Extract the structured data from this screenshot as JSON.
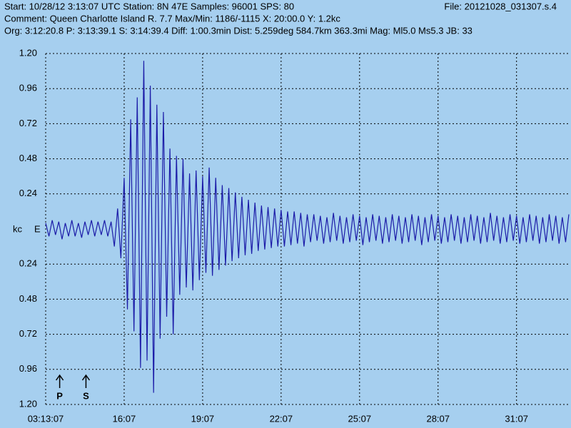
{
  "chart_data": {
    "type": "line",
    "file": "File: 20121028_031307.s.4",
    "info_lines": [
      "Start: 10/28/12  3:13:07 UTC Station:  8N 47E Samples: 96001  SPS: 80",
      "Comment: Queen Charlotte Island R. 7.7  Max/Min: 1186/-1115 X: 20:00.0 Y: 1.2kc",
      "Org: 3:12:20.8 P: 3:13:39.1 S: 3:14:39.4 Diff: 1:00.3min Dist: 5.259deg 584.7km 363.3mi  Mag: Ml5.0 Ms5.3 JB: 33"
    ],
    "y_unit": "kc",
    "channel": "E",
    "color": "#1c1ca8",
    "grid": true,
    "xlim": [
      0,
      20
    ],
    "ylim": [
      -1.2,
      1.2
    ],
    "xticks": [
      {
        "value": 0,
        "label": "03:13:07"
      },
      {
        "value": 3,
        "label": "16:07"
      },
      {
        "value": 6,
        "label": "19:07"
      },
      {
        "value": 9,
        "label": "22:07"
      },
      {
        "value": 12,
        "label": "25:07"
      },
      {
        "value": 15,
        "label": "28:07"
      },
      {
        "value": 18,
        "label": "31:07"
      }
    ],
    "yticks": [
      {
        "value": 1.2,
        "label": "1.20"
      },
      0.96,
      0.72,
      0.48,
      0.24,
      {
        "value": -0.24,
        "label": "0.24"
      },
      {
        "value": -0.48,
        "label": "0.48"
      },
      {
        "value": -0.72,
        "label": "0.72"
      },
      {
        "value": -0.96,
        "label": "0.96"
      },
      {
        "value": -1.2,
        "label": "1.20"
      }
    ],
    "markers": [
      {
        "label": "P",
        "x": 0.535
      },
      {
        "label": "S",
        "x": 1.54
      }
    ],
    "x": [
      0,
      0.125,
      0.25,
      0.375,
      0.5,
      0.625,
      0.75,
      0.875,
      1,
      1.125,
      1.25,
      1.375,
      1.5,
      1.625,
      1.75,
      1.875,
      2,
      2.125,
      2.25,
      2.375,
      2.5,
      2.625,
      2.75,
      2.875,
      3,
      3.125,
      3.25,
      3.375,
      3.5,
      3.625,
      3.75,
      3.875,
      4,
      4.125,
      4.25,
      4.375,
      4.5,
      4.625,
      4.75,
      4.875,
      5,
      5.125,
      5.25,
      5.375,
      5.5,
      5.625,
      5.75,
      5.875,
      6,
      6.125,
      6.25,
      6.375,
      6.5,
      6.625,
      6.75,
      6.875,
      7,
      7.125,
      7.25,
      7.375,
      7.5,
      7.625,
      7.75,
      7.875,
      8,
      8.125,
      8.25,
      8.375,
      8.5,
      8.625,
      8.75,
      8.875,
      9,
      9.125,
      9.25,
      9.375,
      9.5,
      9.625,
      9.75,
      9.875,
      10,
      10.125,
      10.25,
      10.375,
      10.5,
      10.625,
      10.75,
      10.875,
      11,
      11.125,
      11.25,
      11.375,
      11.5,
      11.625,
      11.75,
      11.875,
      12,
      12.125,
      12.25,
      12.375,
      12.5,
      12.625,
      12.75,
      12.875,
      13,
      13.125,
      13.25,
      13.375,
      13.5,
      13.625,
      13.75,
      13.875,
      14,
      14.125,
      14.25,
      14.375,
      14.5,
      14.625,
      14.75,
      14.875,
      15,
      15.125,
      15.25,
      15.375,
      15.5,
      15.625,
      15.75,
      15.875,
      16,
      16.125,
      16.25,
      16.375,
      16.5,
      16.625,
      16.75,
      16.875,
      17,
      17.125,
      17.25,
      17.375,
      17.5,
      17.625,
      17.75,
      17.875,
      18,
      18.125,
      18.25,
      18.375,
      18.5,
      18.625,
      18.75,
      18.875,
      19,
      19.125,
      19.25,
      19.375,
      19.5,
      19.625,
      19.75,
      19.875,
      20
    ],
    "values": [
      0.04,
      -0.05,
      0.06,
      -0.04,
      0.05,
      -0.07,
      0.04,
      -0.05,
      0.06,
      -0.05,
      0.04,
      -0.06,
      0.05,
      -0.04,
      0.06,
      -0.05,
      0.05,
      -0.04,
      0.06,
      -0.05,
      0.05,
      -0.12,
      0.14,
      -0.2,
      0.35,
      -0.55,
      0.75,
      -0.7,
      0.9,
      -0.95,
      1.15,
      -0.9,
      0.98,
      -1.12,
      0.85,
      -0.75,
      0.8,
      -0.6,
      0.55,
      -0.72,
      0.5,
      -0.45,
      0.48,
      -0.4,
      0.38,
      -0.42,
      0.4,
      -0.35,
      0.36,
      -0.3,
      0.42,
      -0.32,
      0.35,
      -0.28,
      0.3,
      -0.25,
      0.28,
      -0.22,
      0.25,
      -0.2,
      0.22,
      -0.18,
      0.2,
      -0.17,
      0.18,
      -0.15,
      0.16,
      -0.14,
      0.15,
      -0.13,
      0.14,
      -0.12,
      0.13,
      -0.12,
      0.12,
      -0.11,
      0.12,
      -0.1,
      0.11,
      -0.12,
      0.1,
      -0.09,
      0.1,
      -0.08,
      0.09,
      -0.1,
      0.08,
      -0.09,
      0.11,
      -0.08,
      0.09,
      -0.1,
      0.08,
      -0.09,
      0.1,
      -0.08,
      0.09,
      -0.11,
      0.08,
      -0.09,
      0.1,
      -0.08,
      0.09,
      -0.1,
      0.08,
      -0.09,
      0.1,
      -0.08,
      0.09,
      -0.1,
      0.08,
      -0.09,
      0.1,
      -0.08,
      0.09,
      -0.11,
      0.08,
      -0.09,
      0.1,
      -0.08,
      0.09,
      -0.1,
      0.08,
      -0.09,
      0.1,
      -0.08,
      0.09,
      -0.1,
      0.08,
      -0.09,
      0.1,
      -0.08,
      0.09,
      -0.1,
      0.08,
      -0.09,
      0.11,
      -0.08,
      0.09,
      -0.1,
      0.08,
      -0.09,
      0.1,
      -0.08,
      0.09,
      -0.1,
      0.08,
      -0.09,
      0.1,
      -0.08,
      0.09,
      -0.1,
      0.08,
      -0.09,
      0.1,
      -0.08,
      0.09,
      -0.1,
      0.08,
      -0.09,
      0.1
    ]
  }
}
